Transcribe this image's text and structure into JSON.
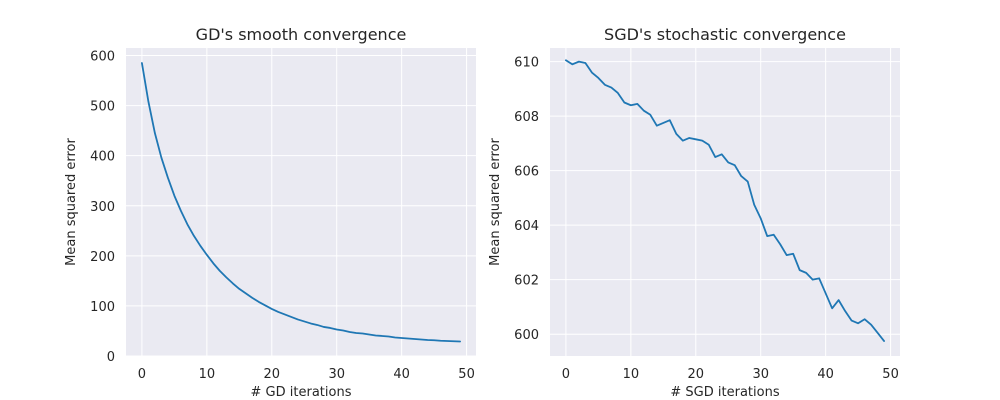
{
  "chart_data": [
    {
      "type": "line",
      "title": "GD's smooth convergence",
      "xlabel": "# GD iterations",
      "ylabel": "Mean squared error",
      "xlim": [
        -2.45,
        51.45
      ],
      "ylim": [
        0,
        615
      ],
      "xticks": [
        0,
        10,
        20,
        30,
        40,
        50
      ],
      "yticks": [
        0,
        100,
        200,
        300,
        400,
        500,
        600
      ],
      "grid": true,
      "color": "#1f77b4",
      "series": [
        {
          "x": [
            0,
            1,
            2,
            3,
            4,
            5,
            6,
            7,
            8,
            9,
            10,
            11,
            12,
            13,
            14,
            15,
            16,
            17,
            18,
            19,
            20,
            21,
            22,
            23,
            24,
            25,
            26,
            27,
            28,
            29,
            30,
            31,
            32,
            33,
            34,
            35,
            36,
            37,
            38,
            39,
            40,
            41,
            42,
            43,
            44,
            45,
            46,
            47,
            48,
            49
          ],
          "values": [
            585,
            508,
            445,
            396,
            356,
            320,
            290,
            263,
            240,
            220,
            202,
            185,
            170,
            157,
            145,
            134,
            125,
            116,
            108,
            101,
            94,
            88,
            83,
            78,
            73,
            69,
            65,
            62,
            58,
            56,
            53,
            51,
            48,
            46,
            45,
            43,
            41,
            40,
            39,
            37,
            36,
            35,
            34,
            33,
            32,
            31.5,
            30.5,
            30,
            29.5,
            29
          ]
        }
      ]
    },
    {
      "type": "line",
      "title": "SGD's stochastic convergence",
      "xlabel": "# SGD iterations",
      "ylabel": "Mean squared error",
      "xlim": [
        -2.45,
        51.45
      ],
      "ylim": [
        599.2,
        610.5
      ],
      "xticks": [
        0,
        10,
        20,
        30,
        40,
        50
      ],
      "yticks": [
        600,
        602,
        604,
        606,
        608,
        610
      ],
      "grid": true,
      "color": "#1f77b4",
      "series": [
        {
          "x": [
            0,
            1,
            2,
            3,
            4,
            5,
            6,
            7,
            8,
            9,
            10,
            11,
            12,
            13,
            14,
            15,
            16,
            17,
            18,
            19,
            20,
            21,
            22,
            23,
            24,
            25,
            26,
            27,
            28,
            29,
            30,
            31,
            32,
            33,
            34,
            35,
            36,
            37,
            38,
            39,
            40,
            41,
            42,
            43,
            44,
            45,
            46,
            47,
            48,
            49
          ],
          "values": [
            610.05,
            609.9,
            610.0,
            609.95,
            609.6,
            609.4,
            609.15,
            609.05,
            608.85,
            608.5,
            608.4,
            608.45,
            608.2,
            608.05,
            607.65,
            607.75,
            607.85,
            607.35,
            607.1,
            607.2,
            607.15,
            607.1,
            606.95,
            606.5,
            606.6,
            606.3,
            606.2,
            605.8,
            605.6,
            604.75,
            604.25,
            603.6,
            603.65,
            603.3,
            602.9,
            602.95,
            602.35,
            602.25,
            602.0,
            602.05,
            601.5,
            600.95,
            601.25,
            600.85,
            600.5,
            600.4,
            600.55,
            600.35,
            600.05,
            599.75
          ]
        }
      ]
    }
  ]
}
